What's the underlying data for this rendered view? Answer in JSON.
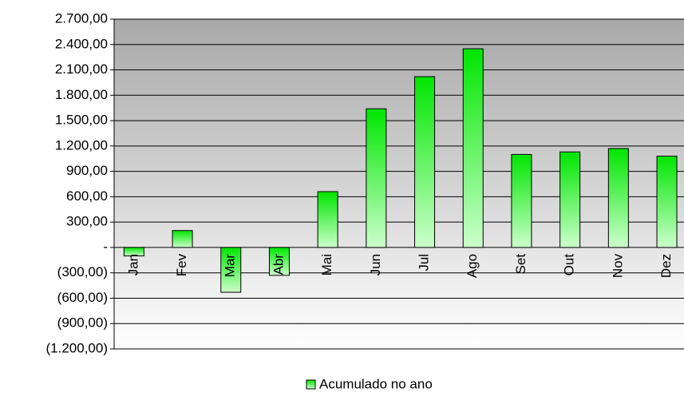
{
  "chart_data": {
    "type": "bar",
    "categories": [
      "Jan",
      "Fev",
      "Mar",
      "Abr",
      "Mai",
      "Jun",
      "Jul",
      "Ago",
      "Set",
      "Out",
      "Nov",
      "Dez"
    ],
    "series": [
      {
        "name": "Acumulado no ano",
        "color": "#22e822",
        "values": [
          -100,
          200,
          -530,
          -330,
          660,
          1640,
          2020,
          2350,
          1100,
          1130,
          1170,
          1080
        ]
      }
    ],
    "ylim": [
      -1200,
      2700
    ],
    "yticks": [
      {
        "value": -1200,
        "label": "(1.200,00)"
      },
      {
        "value": -900,
        "label": "(900,00)"
      },
      {
        "value": -600,
        "label": "(600,00)"
      },
      {
        "value": -300,
        "label": "(300,00)"
      },
      {
        "value": 0,
        "label": "-"
      },
      {
        "value": 300,
        "label": "300,00"
      },
      {
        "value": 600,
        "label": "600,00"
      },
      {
        "value": 900,
        "label": "900,00"
      },
      {
        "value": 1200,
        "label": "1.200,00"
      },
      {
        "value": 1500,
        "label": "1.500,00"
      },
      {
        "value": 1800,
        "label": "1.800,00"
      },
      {
        "value": 2100,
        "label": "2.100,00"
      },
      {
        "value": 2400,
        "label": "2.400,00"
      },
      {
        "value": 2700,
        "label": "2.700,00"
      }
    ],
    "grid": true,
    "legend": "bottom"
  }
}
